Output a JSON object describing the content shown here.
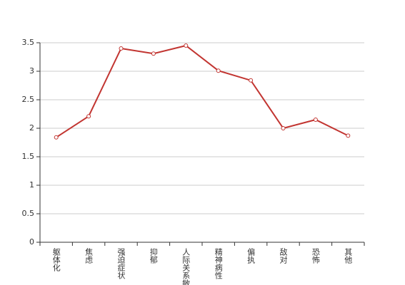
{
  "chart_data": {
    "type": "line",
    "categories": [
      "躯体化",
      "焦虑",
      "强迫症状",
      "抑郁",
      "人际关系敏感",
      "精神病性",
      "偏执",
      "敌对",
      "恐怖",
      "其他"
    ],
    "series": [
      {
        "color": "#c23531",
        "values": [
          1.84,
          2.21,
          3.4,
          3.31,
          3.45,
          3.01,
          2.84,
          2.0,
          2.15,
          1.87
        ]
      }
    ],
    "ylim": [
      0,
      3.5
    ],
    "yticks": [
      0,
      0.5,
      1,
      1.5,
      2,
      2.5,
      3,
      3.5
    ],
    "grid": true
  }
}
